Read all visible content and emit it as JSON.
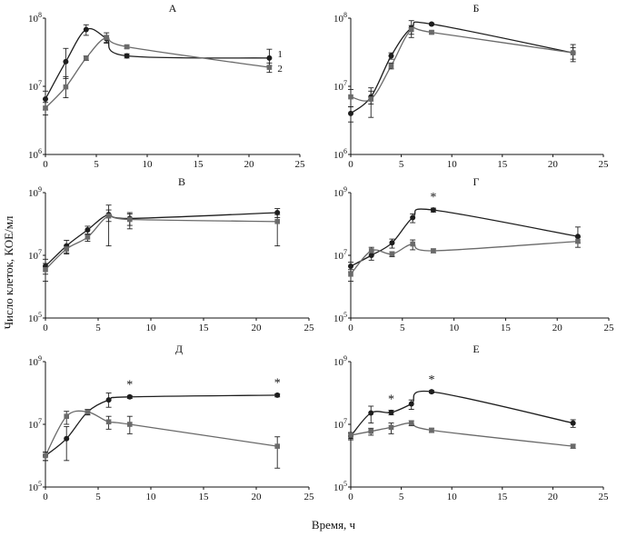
{
  "figure": {
    "ylabel": "Число клеток, КОЕ/мл",
    "xlabel": "Время, ч"
  },
  "style": {
    "series_colors": [
      "#1e1e1e",
      "#6a6a6a"
    ],
    "marker_shapes": [
      "circle",
      "square"
    ]
  },
  "chart_data": [
    {
      "type": "line",
      "title": "А",
      "xlim": [
        0,
        25
      ],
      "xticks": [
        0,
        5,
        10,
        15,
        20,
        25
      ],
      "xtick_labels": [
        "0",
        "5",
        "10",
        "15",
        "20",
        "25"
      ],
      "y_scale": "log",
      "ylim_exp": [
        6,
        8
      ],
      "ytick_exps": [
        6,
        7,
        8
      ],
      "ytick_labels": [
        {
          "base": "10",
          "exp": "6"
        },
        {
          "base": "10",
          "exp": "7"
        },
        {
          "base": "10",
          "exp": "8"
        }
      ],
      "grid": false,
      "series": [
        {
          "name": "1",
          "x": [
            0,
            2,
            4,
            6,
            8,
            22
          ],
          "y": [
            6500000.0,
            23000000.0,
            68000000.0,
            50000000.0,
            28000000.0,
            26000000.0
          ],
          "err_lo": [
            2000000.0,
            10000000.0,
            12000000.0,
            6000000.0,
            2000000.0,
            6000000.0
          ],
          "err_hi": [
            2000000.0,
            13000000.0,
            12000000.0,
            6000000.0,
            2000000.0,
            9000000.0
          ]
        },
        {
          "name": "2",
          "x": [
            0,
            2,
            4,
            6,
            8,
            22
          ],
          "y": [
            4800000.0,
            9800000.0,
            26000000.0,
            52000000.0,
            38000000.0,
            19000000.0
          ],
          "err_lo": [
            1000000.0,
            3000000.0,
            2000000.0,
            9000000.0,
            2000000.0,
            3000000.0
          ],
          "err_hi": [
            1000000.0,
            4000000.0,
            2000000.0,
            9000000.0,
            2000000.0,
            3000000.0
          ]
        }
      ],
      "annotations": []
    },
    {
      "type": "line",
      "title": "Б",
      "xlim": [
        0,
        25
      ],
      "xticks": [
        0,
        5,
        10,
        15,
        20,
        25
      ],
      "xtick_labels": [
        "0",
        "5",
        "10",
        "15",
        "20",
        "25"
      ],
      "y_scale": "log",
      "ylim_exp": [
        6,
        8
      ],
      "ytick_exps": [
        6,
        7,
        8
      ],
      "ytick_labels": [
        {
          "base": "10",
          "exp": "6"
        },
        {
          "base": "10",
          "exp": "7"
        },
        {
          "base": "10",
          "exp": "8"
        }
      ],
      "grid": false,
      "series": [
        {
          "name": "1",
          "x": [
            0,
            2,
            4,
            6,
            8,
            22
          ],
          "y": [
            4000000.0,
            7000000.0,
            28000000.0,
            72000000.0,
            82000000.0,
            31000000.0
          ],
          "err_lo": [
            1000000.0,
            1500000.0,
            3000000.0,
            20000000.0,
            3000000.0,
            8000000.0
          ],
          "err_hi": [
            1000000.0,
            1500000.0,
            3000000.0,
            20000000.0,
            3000000.0,
            10000000.0
          ]
        },
        {
          "name": "2",
          "x": [
            0,
            2,
            4,
            6,
            8,
            22
          ],
          "y": [
            7000000.0,
            6500000.0,
            20000000.0,
            68000000.0,
            62000000.0,
            31000000.0
          ],
          "err_lo": [
            2000000.0,
            3000000.0,
            2000000.0,
            10000000.0,
            3000000.0,
            6000000.0
          ],
          "err_hi": [
            2000000.0,
            3000000.0,
            2000000.0,
            10000000.0,
            3000000.0,
            6000000.0
          ]
        }
      ],
      "annotations": []
    },
    {
      "type": "line",
      "title": "В",
      "xlim": [
        0,
        25
      ],
      "xticks": [
        0,
        5,
        10,
        15,
        20,
        25
      ],
      "xtick_labels": [
        "0",
        "5",
        "10",
        "15",
        "20",
        "25"
      ],
      "y_scale": "log",
      "ylim_exp": [
        5,
        9
      ],
      "ytick_exps": [
        5,
        7,
        9
      ],
      "ytick_labels": [
        {
          "base": "10",
          "exp": "5"
        },
        {
          "base": "10",
          "exp": "7"
        },
        {
          "base": "10",
          "exp": "9"
        }
      ],
      "grid": false,
      "series": [
        {
          "name": "1",
          "x": [
            0,
            2,
            4,
            6,
            8,
            22
          ],
          "y": [
            4500000.0,
            20000000.0,
            65000000.0,
            200000000.0,
            150000000.0,
            230000000.0
          ],
          "err_lo": [
            2000000.0,
            8000000.0,
            20000000.0,
            80000000.0,
            60000000.0,
            70000000.0
          ],
          "err_hi": [
            3000000.0,
            10000000.0,
            20000000.0,
            200000000.0,
            80000000.0,
            80000000.0
          ]
        },
        {
          "name": "2",
          "x": [
            0,
            2,
            4,
            6,
            8,
            22
          ],
          "y": [
            3500000.0,
            16000000.0,
            38000000.0,
            180000000.0,
            140000000.0,
            120000000.0
          ],
          "err_lo": [
            2000000.0,
            5000000.0,
            10000000.0,
            160000000.0,
            70000000.0,
            100000000.0
          ],
          "err_hi": [
            2000000.0,
            5000000.0,
            10000000.0,
            100000000.0,
            70000000.0,
            80000000.0
          ]
        }
      ],
      "annotations": []
    },
    {
      "type": "line",
      "title": "Г",
      "xlim": [
        0,
        25
      ],
      "xticks": [
        0,
        5,
        10,
        15,
        20,
        25
      ],
      "xtick_labels": [
        "0",
        "5",
        "10",
        "15",
        "20",
        "25"
      ],
      "y_scale": "log",
      "ylim_exp": [
        5,
        9
      ],
      "ytick_exps": [
        5,
        7,
        9
      ],
      "ytick_labels": [
        {
          "base": "10",
          "exp": "5"
        },
        {
          "base": "10",
          "exp": "7"
        },
        {
          "base": "10",
          "exp": "9"
        }
      ],
      "grid": false,
      "series": [
        {
          "name": "1",
          "x": [
            0,
            2,
            4,
            6,
            8,
            22
          ],
          "y": [
            4500000.0,
            10000000.0,
            25000000.0,
            160000000.0,
            280000000.0,
            40000000.0
          ],
          "err_lo": [
            1500000.0,
            3000000.0,
            8000000.0,
            50000000.0,
            40000000.0,
            15000000.0
          ],
          "err_hi": [
            1500000.0,
            3000000.0,
            8000000.0,
            50000000.0,
            40000000.0,
            40000000.0
          ]
        },
        {
          "name": "2",
          "x": [
            0,
            2,
            4,
            6,
            8,
            22
          ],
          "y": [
            2500000.0,
            14000000.0,
            11000000.0,
            23000000.0,
            14000000.0,
            28000000.0
          ],
          "err_lo": [
            1000000.0,
            4000000.0,
            2000000.0,
            8000000.0,
            2000000.0,
            10000000.0
          ],
          "err_hi": [
            1000000.0,
            4000000.0,
            2000000.0,
            8000000.0,
            2000000.0,
            10000000.0
          ]
        }
      ],
      "annotations": [
        {
          "text": "*",
          "x": 8
        }
      ]
    },
    {
      "type": "line",
      "title": "Д",
      "xlim": [
        0,
        25
      ],
      "xticks": [
        0,
        5,
        10,
        15,
        20,
        25
      ],
      "xtick_labels": [
        "0",
        "5",
        "10",
        "15",
        "20",
        "25"
      ],
      "y_scale": "log",
      "ylim_exp": [
        5,
        9
      ],
      "ytick_exps": [
        5,
        7,
        9
      ],
      "ytick_labels": [
        {
          "base": "10",
          "exp": "5"
        },
        {
          "base": "10",
          "exp": "7"
        },
        {
          "base": "10",
          "exp": "9"
        }
      ],
      "grid": false,
      "series": [
        {
          "name": "1",
          "x": [
            0,
            2,
            4,
            6,
            8,
            22
          ],
          "y": [
            1000000.0,
            3500000.0,
            25000000.0,
            60000000.0,
            75000000.0,
            85000000.0
          ],
          "err_lo": [
            300000.0,
            2800000.0,
            5000000.0,
            25000000.0,
            8000000.0,
            10000000.0
          ],
          "err_hi": [
            300000.0,
            5000000.0,
            5000000.0,
            40000000.0,
            8000000.0,
            10000000.0
          ]
        },
        {
          "name": "2",
          "x": [
            0,
            2,
            4,
            6,
            8,
            22
          ],
          "y": [
            1000000.0,
            18000000.0,
            25000000.0,
            12000000.0,
            10000000.0,
            2000000.0
          ],
          "err_lo": [
            300000.0,
            8000000.0,
            5000000.0,
            5000000.0,
            5000000.0,
            1600000.0
          ],
          "err_hi": [
            300000.0,
            8000000.0,
            5000000.0,
            6000000.0,
            8000000.0,
            2000000.0
          ]
        }
      ],
      "annotations": [
        {
          "text": "*",
          "x": 8
        },
        {
          "text": "*",
          "x": 22
        }
      ]
    },
    {
      "type": "line",
      "title": "Е",
      "xlim": [
        0,
        25
      ],
      "xticks": [
        0,
        5,
        10,
        15,
        20,
        25
      ],
      "xtick_labels": [
        "0",
        "5",
        "10",
        "15",
        "20",
        "25"
      ],
      "y_scale": "log",
      "ylim_exp": [
        5,
        9
      ],
      "ytick_exps": [
        5,
        7,
        9
      ],
      "ytick_labels": [
        {
          "base": "10",
          "exp": "5"
        },
        {
          "base": "10",
          "exp": "7"
        },
        {
          "base": "10",
          "exp": "9"
        }
      ],
      "grid": false,
      "series": [
        {
          "name": "1",
          "x": [
            0,
            2,
            4,
            6,
            8,
            22
          ],
          "y": [
            4200000.0,
            23000000.0,
            24000000.0,
            45000000.0,
            110000000.0,
            11000000.0
          ],
          "err_lo": [
            1000000.0,
            12000000.0,
            4000000.0,
            15000000.0,
            10000000.0,
            3000000.0
          ],
          "err_hi": [
            1000000.0,
            15000000.0,
            4000000.0,
            15000000.0,
            10000000.0,
            3000000.0
          ]
        },
        {
          "name": "2",
          "x": [
            0,
            2,
            4,
            6,
            8,
            22
          ],
          "y": [
            4500000.0,
            6000000.0,
            8000000.0,
            11000000.0,
            6500000.0,
            2000000.0
          ],
          "err_lo": [
            1000000.0,
            1500000.0,
            3000000.0,
            2000000.0,
            1000000.0,
            300000.0
          ],
          "err_hi": [
            1000000.0,
            1500000.0,
            3000000.0,
            2000000.0,
            1000000.0,
            300000.0
          ]
        }
      ],
      "annotations": [
        {
          "text": "*",
          "x": 4
        },
        {
          "text": "*",
          "x": 8
        }
      ]
    }
  ]
}
